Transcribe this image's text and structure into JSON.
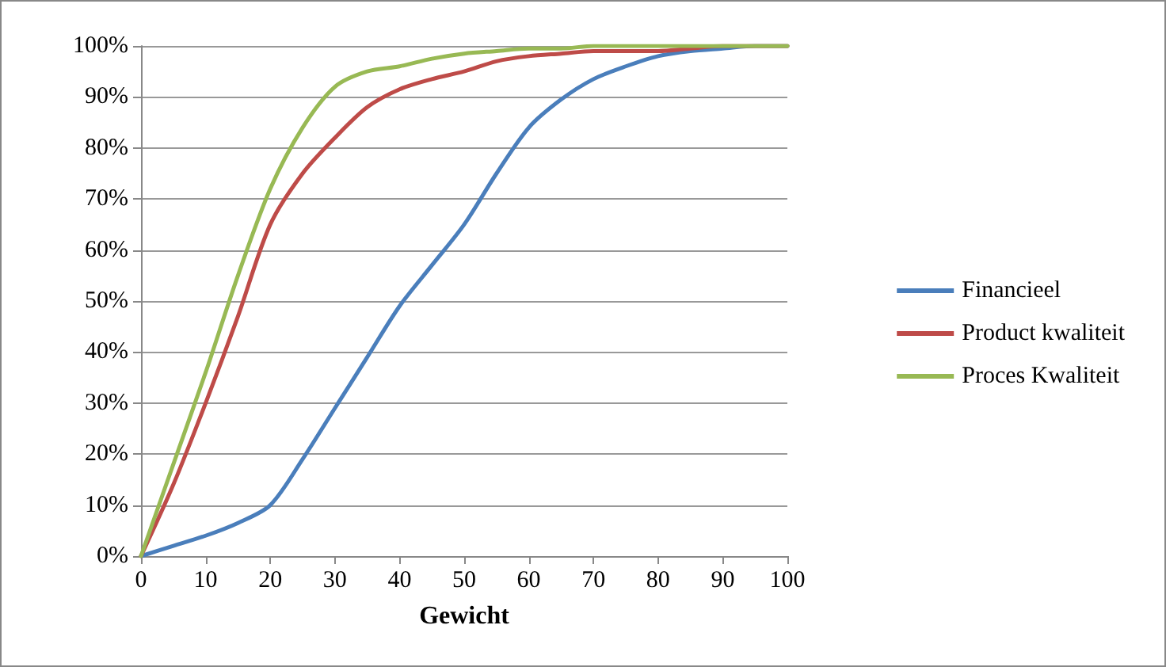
{
  "chart_data": {
    "type": "line",
    "xlabel": "Gewicht",
    "x": [
      0,
      5,
      10,
      15,
      20,
      25,
      30,
      35,
      40,
      45,
      50,
      55,
      60,
      65,
      70,
      75,
      80,
      85,
      90,
      95,
      100
    ],
    "series": [
      {
        "name": "Financieel",
        "color": "#4a7ebb",
        "values": [
          0,
          2,
          4,
          6.5,
          10,
          19,
          29,
          39,
          49,
          57,
          65,
          75,
          84,
          89.5,
          93.5,
          96,
          98,
          99,
          99.5,
          100,
          100
        ]
      },
      {
        "name": "Product kwaliteit",
        "color": "#be4b48",
        "values": [
          0,
          14,
          30,
          47,
          65,
          75,
          82,
          88,
          91.5,
          93.5,
          95,
          97,
          98,
          98.5,
          99,
          99,
          99,
          99.5,
          100,
          100,
          100
        ]
      },
      {
        "name": "Proces Kwaliteit",
        "color": "#98b954",
        "values": [
          0,
          18,
          36,
          55,
          72,
          84,
          92,
          95,
          96,
          97.5,
          98.5,
          99,
          99.5,
          99.5,
          100,
          100,
          100,
          100,
          100,
          100,
          100
        ]
      }
    ],
    "xlim": [
      0,
      100
    ],
    "xticks": [
      0,
      10,
      20,
      30,
      40,
      50,
      60,
      70,
      80,
      90,
      100
    ],
    "ylim": [
      0,
      100
    ],
    "yticks": [
      {
        "value": 0,
        "label": "0%"
      },
      {
        "value": 10,
        "label": "10%"
      },
      {
        "value": 20,
        "label": "20%"
      },
      {
        "value": 30,
        "label": "30%"
      },
      {
        "value": 40,
        "label": "40%"
      },
      {
        "value": 50,
        "label": "50%"
      },
      {
        "value": 60,
        "label": "60%"
      },
      {
        "value": 70,
        "label": "70%"
      },
      {
        "value": 80,
        "label": "80%"
      },
      {
        "value": 90,
        "label": "90%"
      },
      {
        "value": 100,
        "label": "100%"
      }
    ],
    "grid": "y",
    "legend": "right",
    "marker": "none",
    "line_style": "solid"
  }
}
